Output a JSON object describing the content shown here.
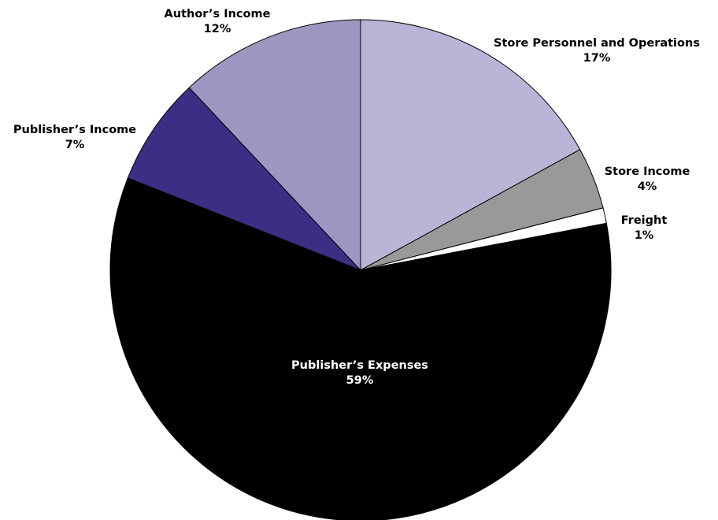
{
  "chart_data": {
    "type": "pie",
    "title": "",
    "start_angle_deg": 0,
    "direction": "clockwise",
    "slices": [
      {
        "label": "Store Personnel and Operations",
        "value": 17,
        "display": "17%",
        "color": "#b8b5d6",
        "label_color": "#000000"
      },
      {
        "label": "Store Income",
        "value": 4,
        "display": "4%",
        "color": "#999999",
        "label_color": "#000000"
      },
      {
        "label": "Freight",
        "value": 1,
        "display": "1%",
        "color": "#ffffff",
        "label_color": "#000000"
      },
      {
        "label": "Publisher’s Expenses",
        "value": 59,
        "display": "59%",
        "color": "#000000",
        "label_color": "#ffffff"
      },
      {
        "label": "Publisher’s Income",
        "value": 7,
        "display": "7%",
        "color": "#3a2f84",
        "label_color": "#000000"
      },
      {
        "label": "Author’s Income",
        "value": 12,
        "display": "12%",
        "color": "#9c96c1",
        "label_color": "#000000"
      }
    ]
  }
}
